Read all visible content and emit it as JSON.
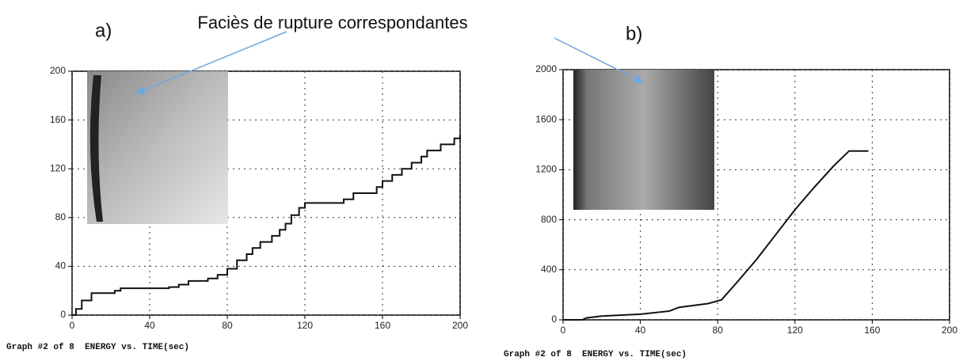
{
  "annotation": "Faciès de rupture correspondantes",
  "chart_data": [
    {
      "type": "line",
      "label": "a)",
      "caption": "Graph #2 of 8  ENERGY vs. TIME(sec)",
      "step": true,
      "grid": true,
      "x": [
        0,
        2,
        5,
        10,
        22,
        25,
        50,
        55,
        60,
        70,
        75,
        80,
        85,
        90,
        93,
        97,
        103,
        107,
        110,
        113,
        117,
        120,
        140,
        145,
        157,
        160,
        165,
        170,
        175,
        180,
        183,
        190,
        197,
        200
      ],
      "series": [
        {
          "color": "#111111",
          "values": [
            0,
            5,
            12,
            18,
            20,
            22,
            23,
            25,
            28,
            30,
            33,
            38,
            45,
            50,
            55,
            60,
            65,
            70,
            75,
            82,
            88,
            92,
            95,
            100,
            105,
            110,
            115,
            120,
            125,
            130,
            135,
            140,
            145,
            148
          ]
        }
      ],
      "xlim": [
        0,
        200
      ],
      "ylim": [
        0,
        200
      ],
      "xticks": [
        0,
        40,
        80,
        120,
        160,
        200
      ],
      "yticks": [
        0,
        40,
        80,
        120,
        160,
        200
      ]
    },
    {
      "type": "line",
      "label": "b)",
      "caption": "Graph #2 of 8  ENERGY vs. TIME(sec)",
      "step": false,
      "grid": true,
      "x": [
        0,
        10,
        12,
        20,
        40,
        55,
        60,
        75,
        82,
        90,
        100,
        110,
        120,
        130,
        140,
        148,
        158
      ],
      "series": [
        {
          "color": "#111111",
          "values": [
            0,
            0,
            15,
            30,
            45,
            70,
            100,
            130,
            160,
            300,
            480,
            680,
            880,
            1060,
            1230,
            1350,
            1350
          ]
        }
      ],
      "xlim": [
        0,
        200
      ],
      "ylim": [
        0,
        2000
      ],
      "xticks": [
        0,
        40,
        80,
        120,
        160,
        200
      ],
      "yticks": [
        0,
        400,
        800,
        1200,
        1600,
        2000
      ]
    }
  ]
}
